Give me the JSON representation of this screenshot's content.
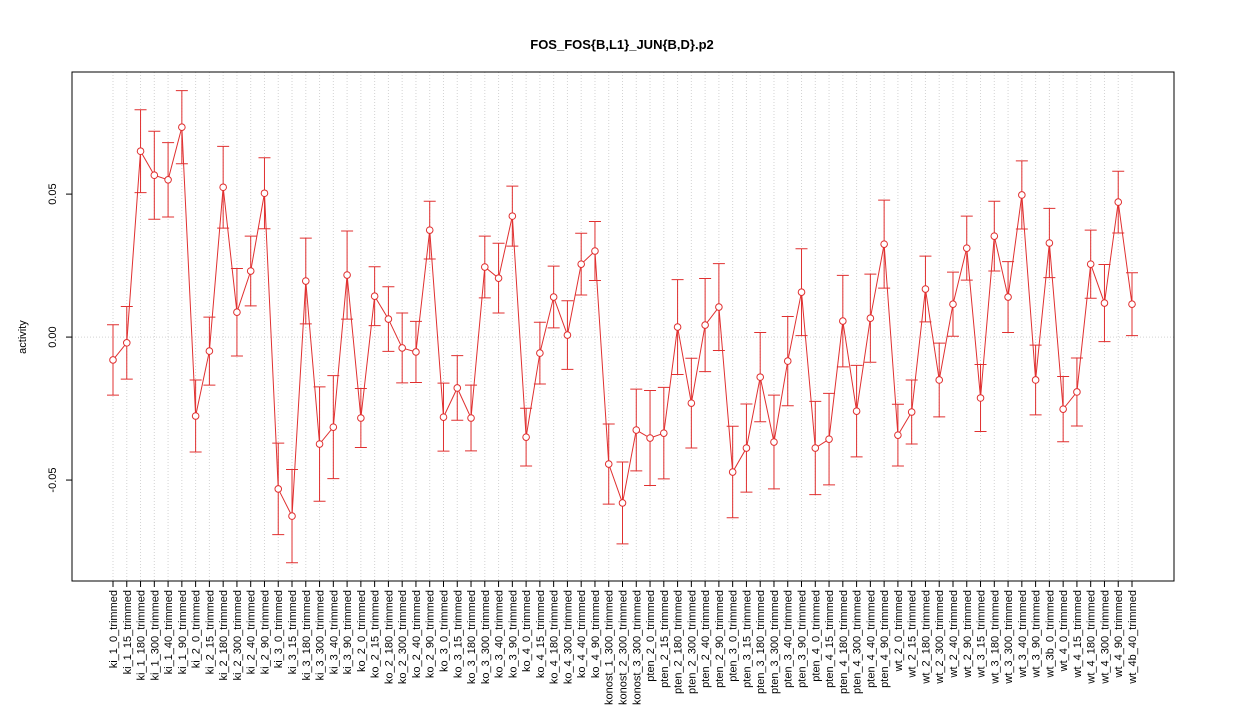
{
  "chart_data": {
    "type": "errorbar_line",
    "title": "FOS_FOS{B,L1}_JUN{B,D}.p2",
    "y_label": "activity",
    "color": "#e03030",
    "grid": true,
    "categories": [
      "ki_1_0_trimmed",
      "ki_1_15_trimmed",
      "ki_1_180_trimmed",
      "ki_1_300_trimmed",
      "ki_1_40_trimmed",
      "ki_1_90_trimmed",
      "ki_2_0_trimmed",
      "ki_2_15_trimmed",
      "ki_2_180_trimmed",
      "ki_2_300_trimmed",
      "ki_2_40_trimmed",
      "ki_2_90_trimmed",
      "ki_3_0_trimmed",
      "ki_3_15_trimmed",
      "ki_3_180_trimmed",
      "ki_3_300_trimmed",
      "ki_3_40_trimmed",
      "ki_3_90_trimmed",
      "ko_2_0_trimmed",
      "ko_2_15_trimmed",
      "ko_2_180_trimmed",
      "ko_2_300_trimmed",
      "ko_2_40_trimmed",
      "ko_2_90_trimmed",
      "ko_3_0_trimmed",
      "ko_3_15_trimmed",
      "ko_3_180_trimmed",
      "ko_3_300_trimmed",
      "ko_3_40_trimmed",
      "ko_3_90_trimmed",
      "ko_4_0_trimmed",
      "ko_4_15_trimmed",
      "ko_4_180_trimmed",
      "ko_4_300_trimmed",
      "ko_4_40_trimmed",
      "ko_4_90_trimmed",
      "konost_1_300_trimmed",
      "konost_2_300_trimmed",
      "konost_3_300_trimmed",
      "pten_2_0_trimmed",
      "pten_2_15_trimmed",
      "pten_2_180_trimmed",
      "pten_2_300_trimmed",
      "pten_2_40_trimmed",
      "pten_2_90_trimmed",
      "pten_3_0_trimmed",
      "pten_3_15_trimmed",
      "pten_3_180_trimmed",
      "pten_3_300_trimmed",
      "pten_3_40_trimmed",
      "pten_3_90_trimmed",
      "pten_4_0_trimmed",
      "pten_4_15_trimmed",
      "pten_4_180_trimmed",
      "pten_4_300_trimmed",
      "pten_4_40_trimmed",
      "pten_4_90_trimmed",
      "wt_2_0_trimmed",
      "wt_2_15_trimmed",
      "wt_2_180_trimmed",
      "wt_2_300_trimmed",
      "wt_2_40_trimmed",
      "wt_2_90_trimmed",
      "wt_3_15_trimmed",
      "wt_3_180_trimmed",
      "wt_3_300_trimmed",
      "wt_3_40_trimmed",
      "wt_3_90_trimmed",
      "wt_3b_0_trimmed",
      "wt_4_0_trimmed",
      "wt_4_15_trimmed",
      "wt_4_180_trimmed",
      "wt_4_300_trimmed",
      "wt_4_90_trimmed",
      "wt_4b_40_trimmed"
    ],
    "values": [
      -0.008,
      -0.002,
      0.065,
      0.0566,
      0.055,
      0.0734,
      -0.0276,
      -0.0049,
      0.0524,
      0.0087,
      0.0231,
      0.0503,
      -0.0531,
      -0.0626,
      0.0196,
      -0.0374,
      -0.0315,
      0.0217,
      -0.0283,
      0.0143,
      0.0063,
      -0.0038,
      -0.0052,
      0.0374,
      -0.028,
      -0.0178,
      -0.0283,
      0.0245,
      0.0206,
      0.0423,
      -0.035,
      -0.0056,
      0.014,
      0.0007,
      0.0255,
      0.0301,
      -0.0444,
      -0.058,
      -0.0325,
      -0.0353,
      -0.0336,
      0.0035,
      -0.0231,
      0.0042,
      0.0105,
      -0.0472,
      -0.0388,
      -0.014,
      -0.0367,
      -0.0084,
      0.0157,
      -0.0388,
      -0.0357,
      0.0056,
      -0.0259,
      0.0066,
      0.0325,
      -0.0343,
      -0.0262,
      0.0168,
      -0.015,
      0.0115,
      0.0311,
      -0.0213,
      0.0353,
      0.014,
      0.0497,
      -0.015,
      0.0329,
      -0.0252,
      -0.0192,
      0.0255,
      0.0119,
      0.0472,
      0.0115
    ],
    "errors": [
      0.0123,
      0.0127,
      0.0145,
      0.0154,
      0.013,
      0.0128,
      0.0126,
      0.0119,
      0.0143,
      0.0153,
      0.0122,
      0.0124,
      0.016,
      0.0163,
      0.015,
      0.02,
      0.018,
      0.0154,
      0.0103,
      0.0103,
      0.0113,
      0.0122,
      0.0107,
      0.0101,
      0.0119,
      0.0113,
      0.0115,
      0.0108,
      0.0122,
      0.0105,
      0.0101,
      0.0108,
      0.0108,
      0.012,
      0.0108,
      0.0103,
      0.014,
      0.0143,
      0.0143,
      0.0166,
      0.016,
      0.0166,
      0.0157,
      0.0163,
      0.0152,
      0.016,
      0.0154,
      0.0156,
      0.0164,
      0.0156,
      0.0152,
      0.0163,
      0.016,
      0.016,
      0.016,
      0.0154,
      0.0154,
      0.0108,
      0.0112,
      0.0115,
      0.0129,
      0.0112,
      0.0112,
      0.0117,
      0.0122,
      0.0124,
      0.0119,
      0.0122,
      0.0121,
      0.0114,
      0.0119,
      0.0119,
      0.0135,
      0.0108,
      0.011
    ],
    "ylim": [
      -0.0853,
      0.0927
    ],
    "yticks": [
      -0.05,
      {
        "value": 0,
        "label": "0.00"
      },
      0.05
    ]
  }
}
